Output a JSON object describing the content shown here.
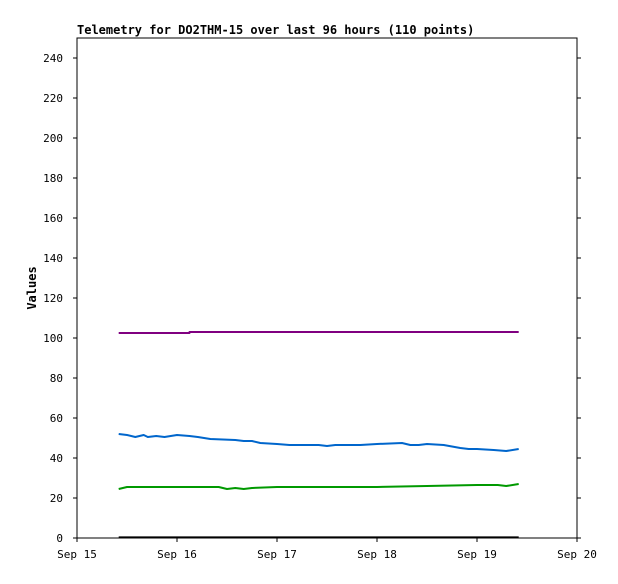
{
  "chart_data": {
    "type": "line",
    "title": "Telemetry for DO2THM-15 over last 96 hours (110 points)",
    "xlabel": "",
    "ylabel": "Values",
    "ylim": [
      0,
      250
    ],
    "yticks": [
      0,
      20,
      40,
      60,
      80,
      100,
      120,
      140,
      160,
      180,
      200,
      220,
      240
    ],
    "xlim": [
      "2023-09-15T00:00",
      "2023-09-20T00:00"
    ],
    "xticks": [
      {
        "x": "2023-09-15T00:00",
        "label": "Sep 15"
      },
      {
        "x": "2023-09-16T00:00",
        "label": "Sep 16"
      },
      {
        "x": "2023-09-17T00:00",
        "label": "Sep 17"
      },
      {
        "x": "2023-09-18T00:00",
        "label": "Sep 18"
      },
      {
        "x": "2023-09-19T00:00",
        "label": "Sep 19"
      },
      {
        "x": "2023-09-20T00:00",
        "label": "Sep 20"
      }
    ],
    "grid": false,
    "series": [
      {
        "color": "#800080",
        "points": [
          [
            "2023-09-15T10:00",
            102.5
          ],
          [
            "2023-09-16T03:00",
            102.5
          ],
          [
            "2023-09-16T03:00",
            103
          ],
          [
            "2023-09-19T10:00",
            103
          ]
        ]
      },
      {
        "color": "#0066cc",
        "points": [
          [
            "2023-09-15T10:00",
            52
          ],
          [
            "2023-09-15T12:00",
            51.5
          ],
          [
            "2023-09-15T14:00",
            50.5
          ],
          [
            "2023-09-15T16:00",
            51.5
          ],
          [
            "2023-09-15T17:00",
            50.5
          ],
          [
            "2023-09-15T19:00",
            51
          ],
          [
            "2023-09-15T21:00",
            50.5
          ],
          [
            "2023-09-16T00:00",
            51.5
          ],
          [
            "2023-09-16T03:00",
            51
          ],
          [
            "2023-09-16T05:00",
            50.5
          ],
          [
            "2023-09-16T08:00",
            49.5
          ],
          [
            "2023-09-16T14:00",
            49
          ],
          [
            "2023-09-16T16:00",
            48.5
          ],
          [
            "2023-09-16T18:00",
            48.5
          ],
          [
            "2023-09-16T20:00",
            47.5
          ],
          [
            "2023-09-17T00:00",
            47
          ],
          [
            "2023-09-17T03:00",
            46.5
          ],
          [
            "2023-09-17T10:00",
            46.5
          ],
          [
            "2023-09-17T12:00",
            46
          ],
          [
            "2023-09-17T14:00",
            46.5
          ],
          [
            "2023-09-17T20:00",
            46.5
          ],
          [
            "2023-09-18T00:00",
            47
          ],
          [
            "2023-09-18T06:00",
            47.5
          ],
          [
            "2023-09-18T08:00",
            46.5
          ],
          [
            "2023-09-18T10:00",
            46.5
          ],
          [
            "2023-09-18T12:00",
            47
          ],
          [
            "2023-09-18T16:00",
            46.5
          ],
          [
            "2023-09-18T20:00",
            45
          ],
          [
            "2023-09-18T22:00",
            44.5
          ],
          [
            "2023-09-19T00:00",
            44.5
          ],
          [
            "2023-09-19T04:00",
            44
          ],
          [
            "2023-09-19T07:00",
            43.5
          ],
          [
            "2023-09-19T10:00",
            44.5
          ]
        ]
      },
      {
        "color": "#009900",
        "points": [
          [
            "2023-09-15T10:00",
            24.5
          ],
          [
            "2023-09-15T12:00",
            25.5
          ],
          [
            "2023-09-15T18:00",
            25.5
          ],
          [
            "2023-09-16T00:00",
            25.5
          ],
          [
            "2023-09-16T10:00",
            25.5
          ],
          [
            "2023-09-16T12:00",
            24.5
          ],
          [
            "2023-09-16T14:00",
            25
          ],
          [
            "2023-09-16T16:00",
            24.5
          ],
          [
            "2023-09-16T18:00",
            25
          ],
          [
            "2023-09-17T00:00",
            25.5
          ],
          [
            "2023-09-18T00:00",
            25.5
          ],
          [
            "2023-09-18T12:00",
            26
          ],
          [
            "2023-09-19T00:00",
            26.5
          ],
          [
            "2023-09-19T05:00",
            26.5
          ],
          [
            "2023-09-19T07:00",
            26
          ],
          [
            "2023-09-19T10:00",
            27
          ]
        ]
      },
      {
        "color": "#000000",
        "points": [
          [
            "2023-09-15T10:00",
            0.3
          ],
          [
            "2023-09-19T10:00",
            0.3
          ]
        ]
      }
    ]
  }
}
